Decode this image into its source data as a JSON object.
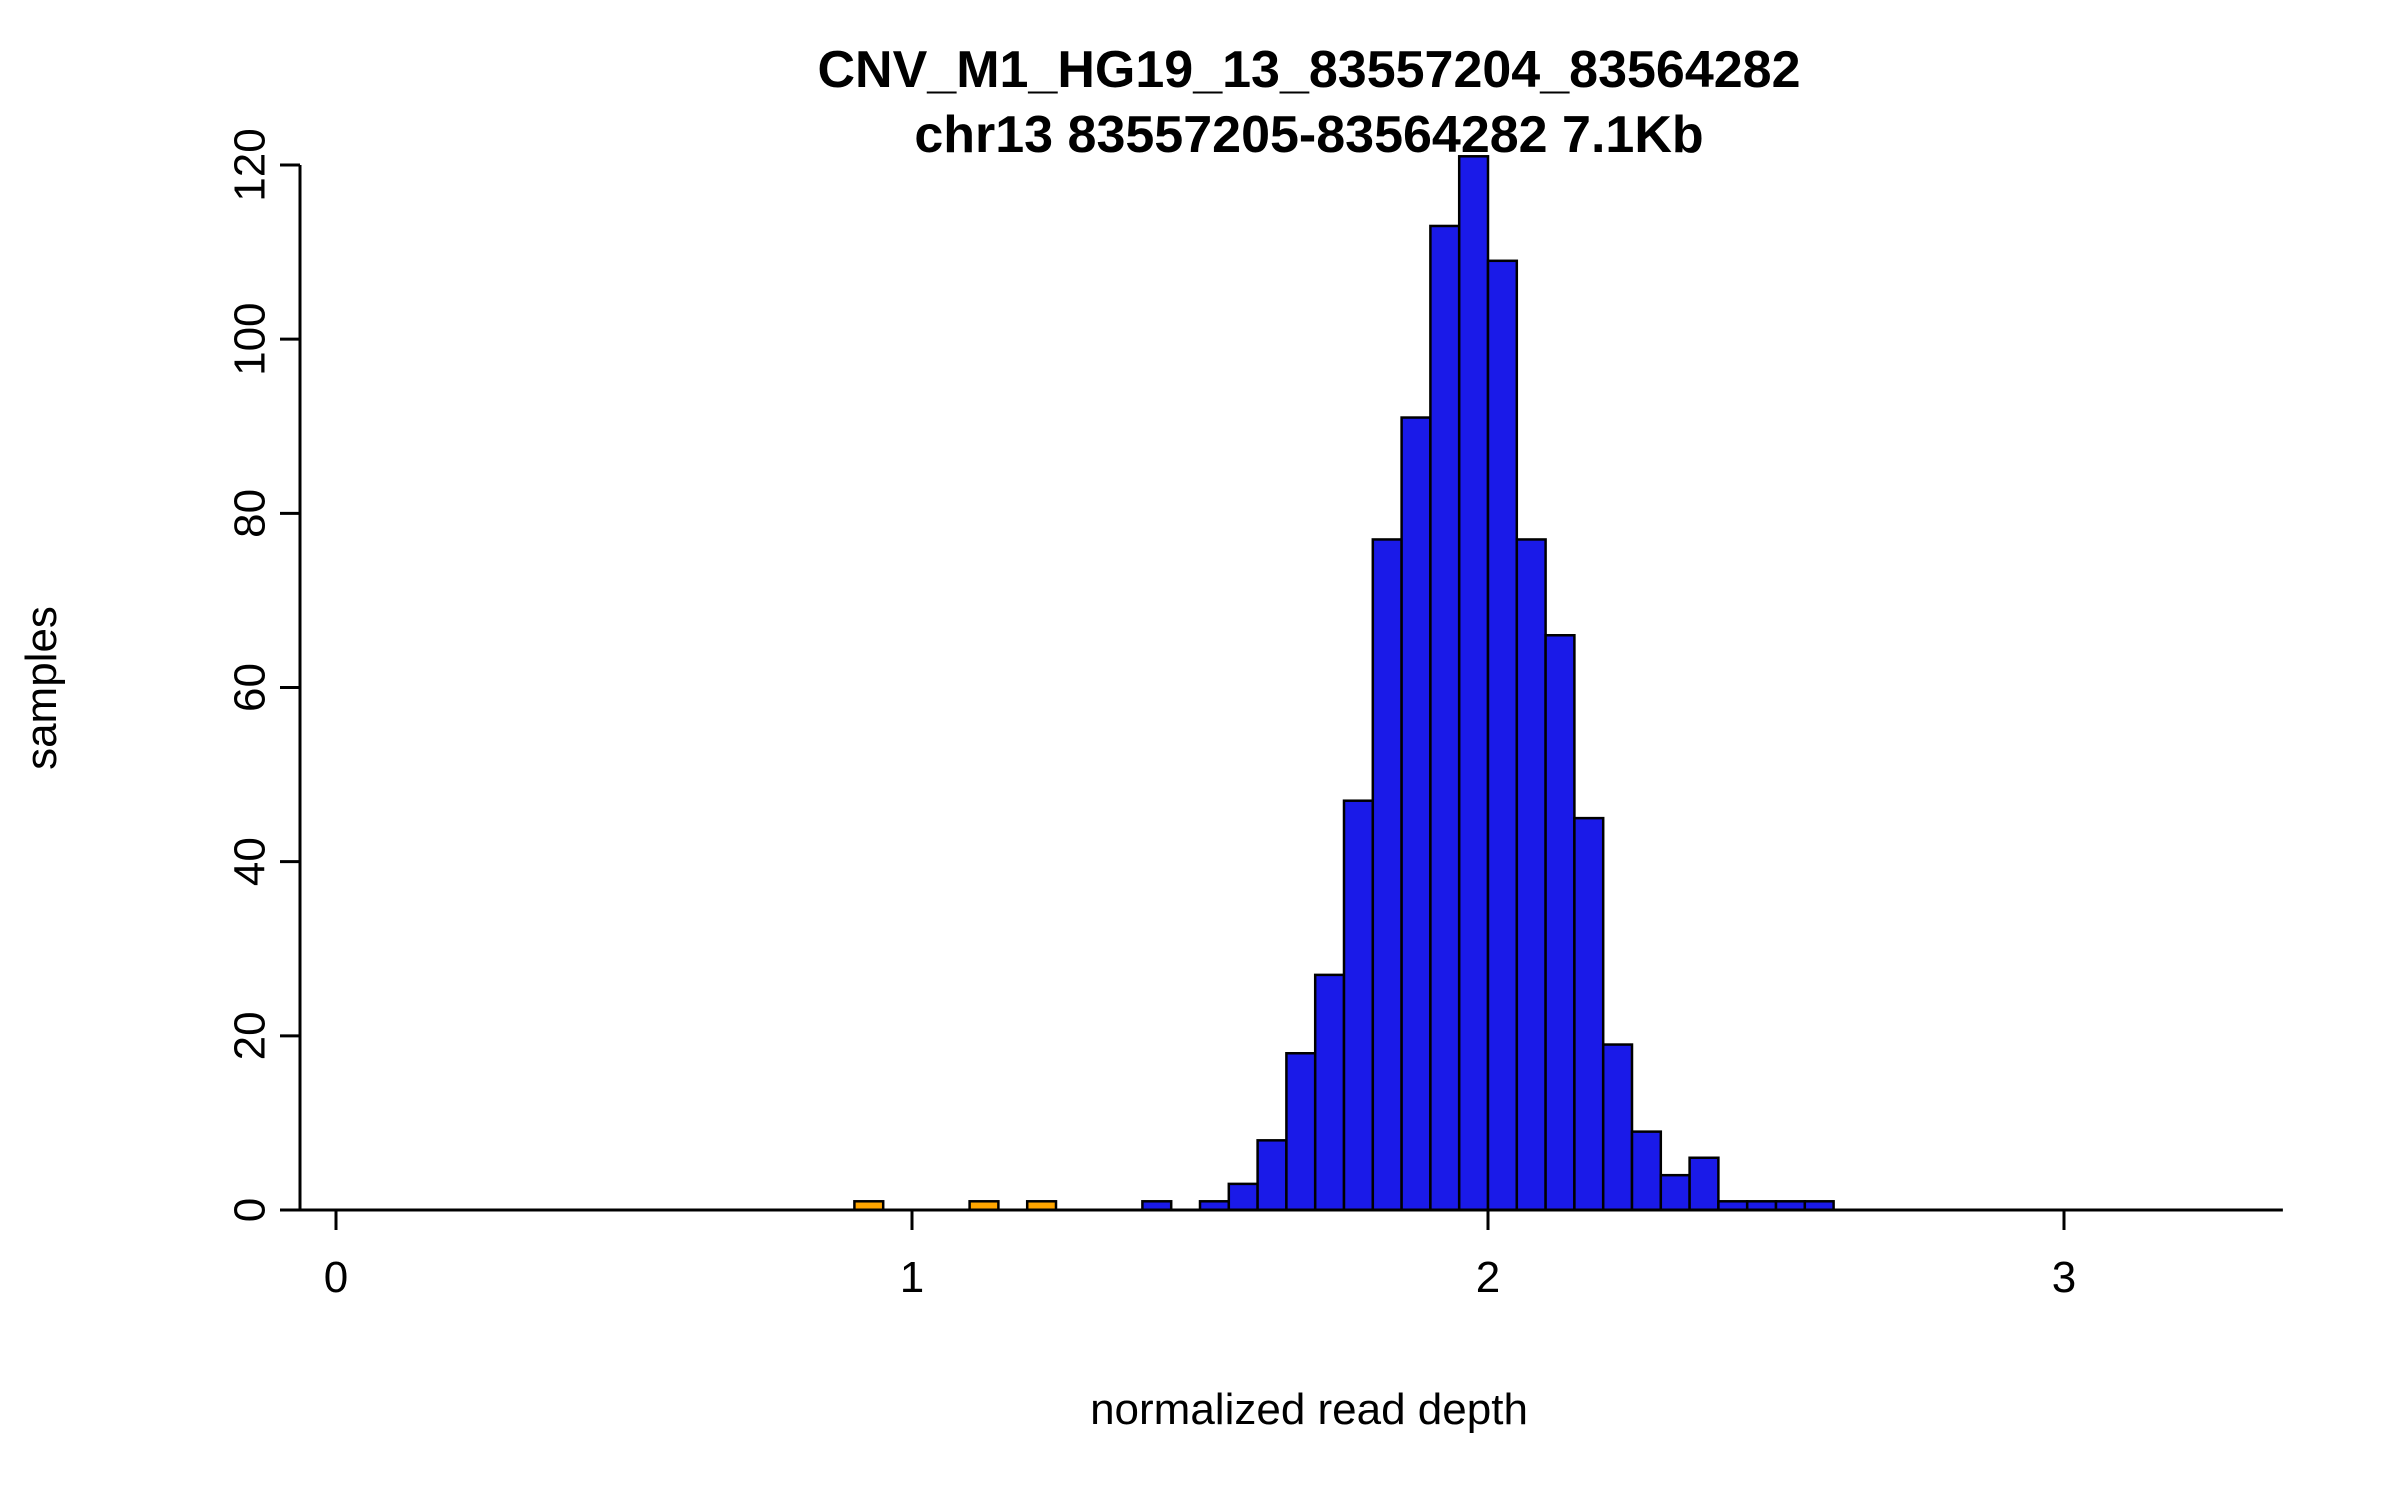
{
  "chart_data": {
    "type": "bar",
    "subtype": "histogram",
    "title": "CNV_M1_HG19_13_83557204_83564282",
    "subtitle": "chr13 83557205-83564282 7.1Kb",
    "xlabel": "normalized read depth",
    "ylabel": "samples",
    "xlim": [
      -0.06,
      3.38
    ],
    "ylim": [
      0,
      121
    ],
    "x_ticks": [
      "0",
      "1",
      "2",
      "3"
    ],
    "x_tick_values": [
      0,
      1,
      2,
      3
    ],
    "y_ticks": [
      "0",
      "20",
      "40",
      "60",
      "80",
      "100",
      "120"
    ],
    "y_tick_values": [
      0,
      20,
      40,
      60,
      80,
      100,
      120
    ],
    "bin_width": 0.05,
    "grid": false,
    "legend": "none",
    "colors": {
      "bar_blue": "#1a1ae8",
      "bar_orange": "#ffa500",
      "axis": "#000000",
      "background": "#ffffff"
    },
    "bars": [
      {
        "x": 0.9,
        "count": 1,
        "color": "orange"
      },
      {
        "x": 1.1,
        "count": 1,
        "color": "orange"
      },
      {
        "x": 1.2,
        "count": 1,
        "color": "orange"
      },
      {
        "x": 1.4,
        "count": 1,
        "color": "blue"
      },
      {
        "x": 1.5,
        "count": 1,
        "color": "blue"
      },
      {
        "x": 1.55,
        "count": 3,
        "color": "blue"
      },
      {
        "x": 1.6,
        "count": 8,
        "color": "blue"
      },
      {
        "x": 1.65,
        "count": 18,
        "color": "blue"
      },
      {
        "x": 1.7,
        "count": 27,
        "color": "blue"
      },
      {
        "x": 1.75,
        "count": 47,
        "color": "blue"
      },
      {
        "x": 1.8,
        "count": 77,
        "color": "blue"
      },
      {
        "x": 1.85,
        "count": 91,
        "color": "blue"
      },
      {
        "x": 1.9,
        "count": 113,
        "color": "blue"
      },
      {
        "x": 1.95,
        "count": 121,
        "color": "blue"
      },
      {
        "x": 2.0,
        "count": 109,
        "color": "blue"
      },
      {
        "x": 2.05,
        "count": 77,
        "color": "blue"
      },
      {
        "x": 2.1,
        "count": 66,
        "color": "blue"
      },
      {
        "x": 2.15,
        "count": 45,
        "color": "blue"
      },
      {
        "x": 2.2,
        "count": 19,
        "color": "blue"
      },
      {
        "x": 2.25,
        "count": 9,
        "color": "blue"
      },
      {
        "x": 2.3,
        "count": 4,
        "color": "blue"
      },
      {
        "x": 2.35,
        "count": 6,
        "color": "blue"
      },
      {
        "x": 2.4,
        "count": 1,
        "color": "blue"
      },
      {
        "x": 2.45,
        "count": 1,
        "color": "blue"
      },
      {
        "x": 2.5,
        "count": 1,
        "color": "blue"
      },
      {
        "x": 2.55,
        "count": 1,
        "color": "blue"
      }
    ]
  }
}
